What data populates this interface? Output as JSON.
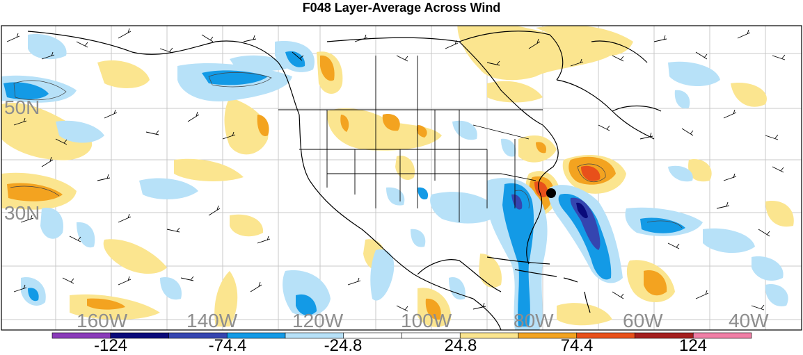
{
  "title": "F048 Layer-Average Across Wind",
  "lat_labels": [
    "50N",
    "30N"
  ],
  "lon_labels": [
    "160W",
    "140W",
    "120W",
    "100W",
    "80W",
    "60W",
    "40W"
  ],
  "colorbar": {
    "labels": [
      "-124",
      "-74.4",
      "-24.8",
      "24.8",
      "74.4",
      "124"
    ],
    "colors": [
      "#8a3ab9",
      "#0a0a7a",
      "#3545b0",
      "#139ae6",
      "#b7e1f8",
      "#ffffff",
      "#ffffff",
      "#fbe58f",
      "#f3a320",
      "#e8501a",
      "#a41e1e",
      "#f07fa6"
    ]
  },
  "marker": {
    "type": "storm-center",
    "color": "#000000"
  }
}
